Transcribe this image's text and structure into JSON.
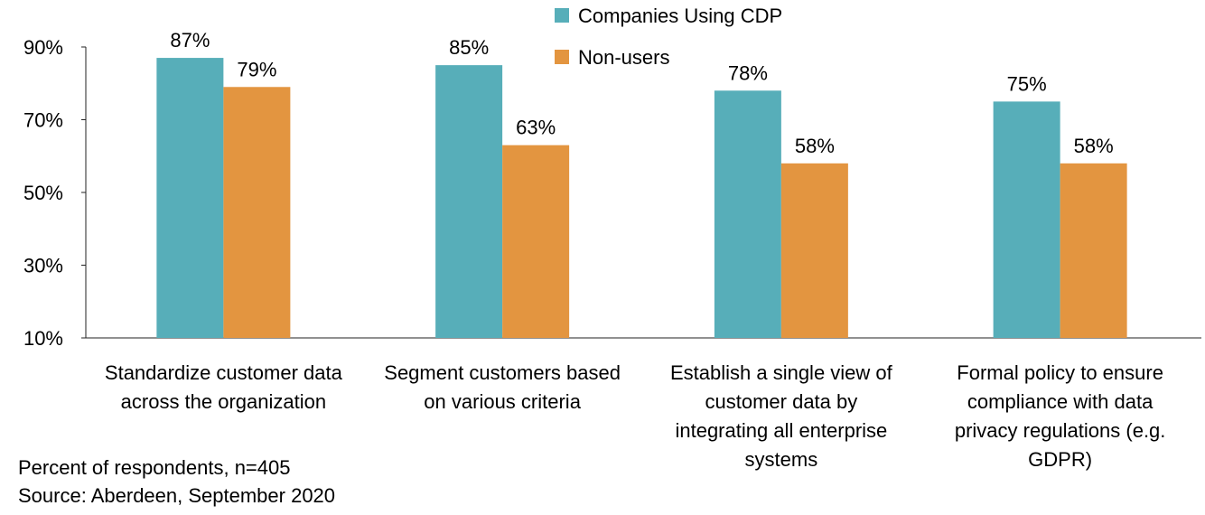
{
  "chart_data": {
    "type": "bar",
    "categories": [
      "Standardize customer data\nacross the organization",
      "Segment customers based\non various criteria",
      "Establish a single view of\ncustomer data by\nintegrating all enterprise\nsystems",
      "Formal policy to ensure\ncompliance with data\nprivacy regulations (e.g.\nGDPR)"
    ],
    "series": [
      {
        "name": "Companies Using CDP",
        "color": "#57aeb9",
        "values": [
          87,
          85,
          78,
          75
        ],
        "labels": [
          "87%",
          "85%",
          "78%",
          "75%"
        ]
      },
      {
        "name": "Non-users",
        "color": "#e39540",
        "values": [
          79,
          63,
          58,
          58
        ],
        "labels": [
          "79%",
          "63%",
          "58%",
          "58%"
        ]
      }
    ],
    "yticks": [
      10,
      30,
      50,
      70,
      90
    ],
    "ytick_labels": [
      "10%",
      "30%",
      "50%",
      "70%",
      "90%"
    ],
    "ylim": [
      10,
      90
    ],
    "legend_position": "top-center",
    "title": "",
    "xlabel": "",
    "ylabel": ""
  },
  "notes": {
    "sample": "Percent of respondents, n=405",
    "source": "Source: Aberdeen, September 2020"
  }
}
